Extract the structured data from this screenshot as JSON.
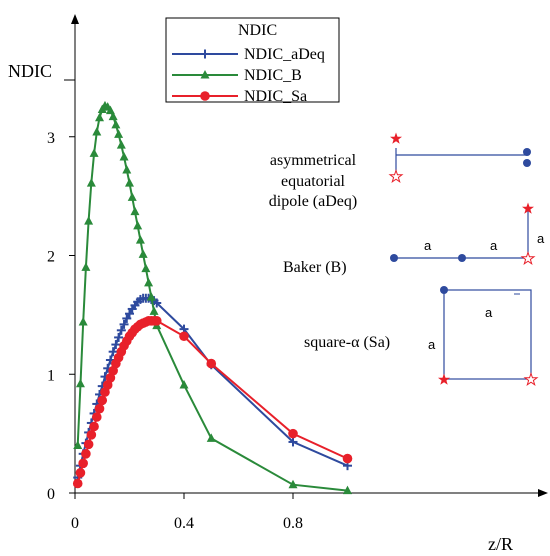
{
  "chart_data": {
    "type": "line",
    "title": "",
    "xlabel": "z/R",
    "ylabel": "NDIC",
    "xlim": [
      0,
      1.15
    ],
    "ylim": [
      0,
      3.95
    ],
    "xticks": [
      "0",
      "0.4",
      "0.8"
    ],
    "yticks": [
      "0",
      "1",
      "2",
      "3"
    ],
    "legend": {
      "title": "NDIC",
      "placement": "top-center",
      "entries": [
        "NDIC_aDeq",
        "NDIC_B",
        "NDIC_Sa"
      ]
    },
    "series": [
      {
        "name": "NDIC_aDeq",
        "color": "#2e4a9e",
        "marker": "plus",
        "x": [
          0.01,
          0.02,
          0.03,
          0.04,
          0.05,
          0.06,
          0.07,
          0.08,
          0.09,
          0.1,
          0.11,
          0.12,
          0.13,
          0.14,
          0.15,
          0.16,
          0.17,
          0.18,
          0.19,
          0.2,
          0.21,
          0.22,
          0.23,
          0.24,
          0.25,
          0.26,
          0.27,
          0.28,
          0.29,
          0.3,
          0.4,
          0.5,
          0.8,
          1.0
        ],
        "y": [
          0.13,
          0.23,
          0.33,
          0.42,
          0.51,
          0.59,
          0.67,
          0.75,
          0.83,
          0.9,
          0.98,
          1.05,
          1.12,
          1.19,
          1.25,
          1.31,
          1.37,
          1.42,
          1.47,
          1.51,
          1.55,
          1.58,
          1.61,
          1.63,
          1.64,
          1.64,
          1.64,
          1.63,
          1.62,
          1.6,
          1.38,
          1.08,
          0.43,
          0.23
        ]
      },
      {
        "name": "NDIC_B",
        "color": "#2a8a3a",
        "marker": "triangle",
        "x": [
          0.01,
          0.02,
          0.03,
          0.04,
          0.05,
          0.06,
          0.07,
          0.08,
          0.09,
          0.1,
          0.11,
          0.12,
          0.13,
          0.14,
          0.15,
          0.16,
          0.17,
          0.18,
          0.19,
          0.2,
          0.21,
          0.22,
          0.23,
          0.24,
          0.25,
          0.26,
          0.27,
          0.28,
          0.29,
          0.3,
          0.4,
          0.5,
          0.8,
          1.0
        ],
        "y": [
          0.4,
          0.92,
          1.44,
          1.9,
          2.29,
          2.61,
          2.86,
          3.04,
          3.16,
          3.23,
          3.26,
          3.25,
          3.22,
          3.17,
          3.1,
          3.02,
          2.93,
          2.83,
          2.72,
          2.61,
          2.49,
          2.37,
          2.25,
          2.13,
          2.01,
          1.89,
          1.77,
          1.65,
          1.53,
          1.41,
          0.91,
          0.46,
          0.07,
          0.02
        ]
      },
      {
        "name": "NDIC_Sa",
        "color": "#e8202a",
        "marker": "circle",
        "x": [
          0.01,
          0.02,
          0.03,
          0.04,
          0.05,
          0.06,
          0.07,
          0.08,
          0.09,
          0.1,
          0.11,
          0.12,
          0.13,
          0.14,
          0.15,
          0.16,
          0.17,
          0.18,
          0.19,
          0.2,
          0.21,
          0.22,
          0.23,
          0.24,
          0.25,
          0.26,
          0.27,
          0.28,
          0.29,
          0.3,
          0.4,
          0.5,
          0.8,
          1.0
        ],
        "y": [
          0.08,
          0.17,
          0.25,
          0.33,
          0.41,
          0.49,
          0.56,
          0.64,
          0.71,
          0.78,
          0.85,
          0.91,
          0.97,
          1.03,
          1.09,
          1.14,
          1.19,
          1.24,
          1.28,
          1.32,
          1.35,
          1.38,
          1.4,
          1.42,
          1.43,
          1.44,
          1.45,
          1.45,
          1.45,
          1.45,
          1.32,
          1.09,
          0.5,
          0.29
        ]
      }
    ],
    "annotations": {
      "aDeq": [
        "asymmetrical",
        "equatorial",
        "dipole (aDeq)"
      ],
      "B": "Baker (B)",
      "Sa": "square-α (Sa)",
      "side": "a"
    },
    "colors": {
      "blue": "#2e4a9e",
      "green": "#2a8a3a",
      "red": "#e8202a",
      "star": "#e8202a",
      "dot": "#2e4a9e"
    }
  }
}
